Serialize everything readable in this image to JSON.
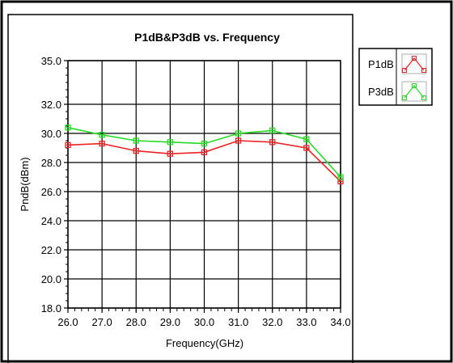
{
  "chart_data": {
    "type": "line",
    "title": "P1dB&P3dB vs. Frequency",
    "xlabel": "Frequency(GHz)",
    "ylabel": "PndB(dBm)",
    "xlim": [
      26.0,
      34.0
    ],
    "ylim": [
      18.0,
      35.0
    ],
    "x_ticks": [
      "26.0",
      "27.0",
      "28.0",
      "29.0",
      "30.0",
      "31.0",
      "32.0",
      "33.0",
      "34.0"
    ],
    "y_ticks": [
      {
        "value": 18,
        "label": "18.0"
      },
      {
        "value": 20,
        "label": "20.0"
      },
      {
        "value": 22,
        "label": "22.0"
      },
      {
        "value": 24,
        "label": "24.0"
      },
      {
        "value": 26,
        "label": "26.0"
      },
      {
        "value": 28,
        "label": "28.0"
      },
      {
        "value": 30,
        "label": "30.0"
      },
      {
        "value": 32,
        "label": "32.0"
      },
      {
        "value": 35,
        "label": "35.0"
      }
    ],
    "grid": true,
    "legend_position": "top-right",
    "x": [
      26,
      27,
      28,
      29,
      30,
      31,
      32,
      33,
      34
    ],
    "series": [
      {
        "name": "P1dB",
        "color": "#ee2222",
        "values": [
          29.2,
          29.3,
          28.8,
          28.6,
          28.7,
          29.5,
          29.4,
          29.0,
          26.7
        ]
      },
      {
        "name": "P3dB",
        "color": "#22dd22",
        "values": [
          30.4,
          29.9,
          29.5,
          29.4,
          29.3,
          30.0,
          30.2,
          29.6,
          27.0
        ]
      }
    ]
  }
}
